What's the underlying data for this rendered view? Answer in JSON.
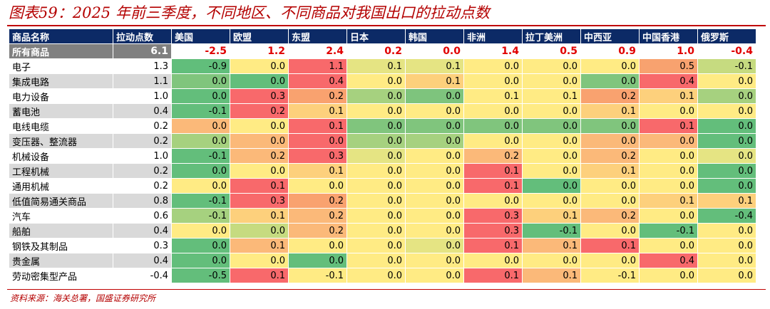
{
  "title": "图表59：2025 年前三季度，不同地区、不同商品对我国出口的拉动点数",
  "source": "资料来源：海关总署，国盛证券研究所",
  "colors": {
    "title": "#b40000",
    "header_bg": "#0c2a66",
    "highlight_red": "#e00000",
    "heat_positive": "#f8696b",
    "heat_neutral": "#ffeb84",
    "heat_negative": "#63be7b"
  },
  "headers": [
    "商品名称",
    "拉动点数",
    "美国",
    "欧盟",
    "东盟",
    "日本",
    "韩国",
    "非洲",
    "拉丁美洲",
    "中西亚",
    "中国香港",
    "俄罗斯"
  ],
  "all_row": {
    "name": "所有商品",
    "total": "6.1",
    "values": [
      "-2.5",
      "1.2",
      "2.4",
      "0.2",
      "0.0",
      "1.4",
      "0.5",
      "0.9",
      "1.0",
      "-0.4"
    ]
  },
  "rows": [
    {
      "name": "电子",
      "total": "1.3",
      "values": [
        "-0.9",
        "0.0",
        "1.1",
        "0.1",
        "0.1",
        "0.0",
        "0.0",
        "0.0",
        "0.5",
        "-0.1"
      ],
      "colors": [
        "#61be7b",
        "#ffeb84",
        "#f8696b",
        "#e5e483",
        "#e5e483",
        "#ffeb84",
        "#ffeb84",
        "#ffeb84",
        "#f8a26f",
        "#c6db80"
      ]
    },
    {
      "name": "集成电路",
      "total": "1.1",
      "values": [
        "0.0",
        "0.0",
        "0.4",
        "0.0",
        "0.1",
        "0.0",
        "0.0",
        "0.0",
        "0.4",
        "0.0"
      ],
      "colors": [
        "#80c57d",
        "#63be7b",
        "#f8696b",
        "#ffeb84",
        "#fdd07c",
        "#ffeb84",
        "#ffeb84",
        "#80c57d",
        "#f8696b",
        "#ffeb84"
      ]
    },
    {
      "name": "电力设备",
      "total": "1.0",
      "values": [
        "0.0",
        "0.3",
        "0.2",
        "0.0",
        "0.0",
        "0.1",
        "0.1",
        "0.2",
        "0.1",
        "0.0"
      ],
      "colors": [
        "#63be7b",
        "#f8696b",
        "#f9a26f",
        "#a6d17f",
        "#7ec47d",
        "#ffeb84",
        "#ffeb84",
        "#f9a26f",
        "#fdd07c",
        "#a6d17f"
      ]
    },
    {
      "name": "蓄电池",
      "total": "0.4",
      "values": [
        "-0.1",
        "0.2",
        "0.1",
        "0.0",
        "0.0",
        "0.0",
        "0.0",
        "0.1",
        "0.0",
        "0.0"
      ],
      "colors": [
        "#63be7b",
        "#f8696b",
        "#fdd07c",
        "#ffeb84",
        "#ffeb84",
        "#ffeb84",
        "#ffeb84",
        "#fdd07c",
        "#ffeb84",
        "#ffeb84"
      ]
    },
    {
      "name": "电线电缆",
      "total": "0.2",
      "values": [
        "0.0",
        "0.0",
        "0.1",
        "0.0",
        "0.0",
        "0.0",
        "0.0",
        "0.0",
        "0.1",
        "0.0"
      ],
      "colors": [
        "#fbb979",
        "#ffeb84",
        "#f8696b",
        "#80c57d",
        "#80c57d",
        "#80c57d",
        "#80c57d",
        "#80c57d",
        "#f8696b",
        "#63be7b"
      ]
    },
    {
      "name": "变压器、整流器",
      "total": "0.2",
      "values": [
        "0.0",
        "0.0",
        "0.0",
        "0.0",
        "0.0",
        "0.0",
        "0.0",
        "0.0",
        "0.0",
        "0.0"
      ],
      "colors": [
        "#a6d17f",
        "#fbb979",
        "#f8696b",
        "#a6d17f",
        "#a6d17f",
        "#ffeb84",
        "#ffeb84",
        "#fbb979",
        "#fbb979",
        "#63be7b"
      ]
    },
    {
      "name": "机械设备",
      "total": "1.0",
      "values": [
        "-0.1",
        "0.2",
        "0.3",
        "0.0",
        "0.0",
        "0.2",
        "0.0",
        "0.2",
        "0.0",
        "0.0"
      ],
      "colors": [
        "#63be7b",
        "#fbb979",
        "#f8696b",
        "#e5e483",
        "#ffeb84",
        "#fbb979",
        "#ffeb84",
        "#fbb979",
        "#ffeb84",
        "#e5e483"
      ]
    },
    {
      "name": "工程机械",
      "total": "0.2",
      "values": [
        "0.0",
        "0.0",
        "0.1",
        "0.0",
        "0.0",
        "0.1",
        "0.0",
        "0.1",
        "0.0",
        "0.0"
      ],
      "colors": [
        "#63be7b",
        "#ffeb84",
        "#fdd07c",
        "#ffeb84",
        "#ffeb84",
        "#f8696b",
        "#ffeb84",
        "#fdd07c",
        "#ffeb84",
        "#63be7b"
      ]
    },
    {
      "name": "通用机械",
      "total": "0.2",
      "values": [
        "0.0",
        "0.1",
        "0.0",
        "0.0",
        "0.0",
        "0.1",
        "0.0",
        "0.0",
        "0.0",
        "0.0"
      ],
      "colors": [
        "#ffeb84",
        "#f8696b",
        "#ffeb84",
        "#ffeb84",
        "#ffeb84",
        "#f8696b",
        "#63be7b",
        "#ffeb84",
        "#ffeb84",
        "#63be7b"
      ]
    },
    {
      "name": "低值简易通关商品",
      "total": "0.8",
      "values": [
        "-0.1",
        "0.3",
        "0.2",
        "0.0",
        "0.0",
        "0.0",
        "0.0",
        "0.0",
        "0.1",
        "0.1"
      ],
      "colors": [
        "#63be7b",
        "#f8696b",
        "#f9a26f",
        "#ffeb84",
        "#ffeb84",
        "#ffeb84",
        "#ffeb84",
        "#ffeb84",
        "#fdd07c",
        "#fdd07c"
      ]
    },
    {
      "name": "汽车",
      "total": "0.6",
      "values": [
        "-0.1",
        "0.1",
        "0.2",
        "0.0",
        "0.0",
        "0.3",
        "0.1",
        "0.2",
        "0.0",
        "-0.4"
      ],
      "colors": [
        "#a6d17f",
        "#fdd07c",
        "#fbb979",
        "#ffeb84",
        "#ffeb84",
        "#f8696b",
        "#fdd07c",
        "#fbb979",
        "#ffeb84",
        "#63be7b"
      ]
    },
    {
      "name": "船舶",
      "total": "0.4",
      "values": [
        "0.0",
        "0.0",
        "0.2",
        "0.0",
        "0.0",
        "0.3",
        "-0.1",
        "0.0",
        "-0.1",
        "0.0"
      ],
      "colors": [
        "#ffeb84",
        "#c6db80",
        "#fbb979",
        "#ffeb84",
        "#ffeb84",
        "#f8696b",
        "#63be7b",
        "#ffeb84",
        "#63be7b",
        "#ffeb84"
      ]
    },
    {
      "name": "钢铁及其制品",
      "total": "0.3",
      "values": [
        "0.0",
        "0.1",
        "0.0",
        "0.0",
        "0.0",
        "0.1",
        "0.1",
        "0.1",
        "0.0",
        "0.0"
      ],
      "colors": [
        "#63be7b",
        "#fbb979",
        "#ffeb84",
        "#ffeb84",
        "#e5e483",
        "#f8696b",
        "#fbb979",
        "#f8696b",
        "#ffeb84",
        "#ffeb84"
      ]
    },
    {
      "name": "贵金属",
      "total": "0.4",
      "values": [
        "0.0",
        "0.0",
        "0.0",
        "0.0",
        "0.0",
        "0.0",
        "0.0",
        "0.0",
        "0.4",
        "0.0"
      ],
      "colors": [
        "#63be7b",
        "#ffeb84",
        "#63be7b",
        "#ffeb84",
        "#ffeb84",
        "#ffeb84",
        "#ffeb84",
        "#ffeb84",
        "#f8696b",
        "#ffeb84"
      ]
    },
    {
      "name": "劳动密集型产品",
      "total": "-0.4",
      "values": [
        "-0.5",
        "0.1",
        "-0.1",
        "0.0",
        "0.0",
        "0.1",
        "0.1",
        "-0.1",
        "0.0",
        "0.0"
      ],
      "colors": [
        "#63be7b",
        "#f8696b",
        "#ffeb84",
        "#ffeb84",
        "#ffeb84",
        "#f8696b",
        "#fbb979",
        "#ffeb84",
        "#ffeb84",
        "#ffeb84"
      ]
    }
  ]
}
